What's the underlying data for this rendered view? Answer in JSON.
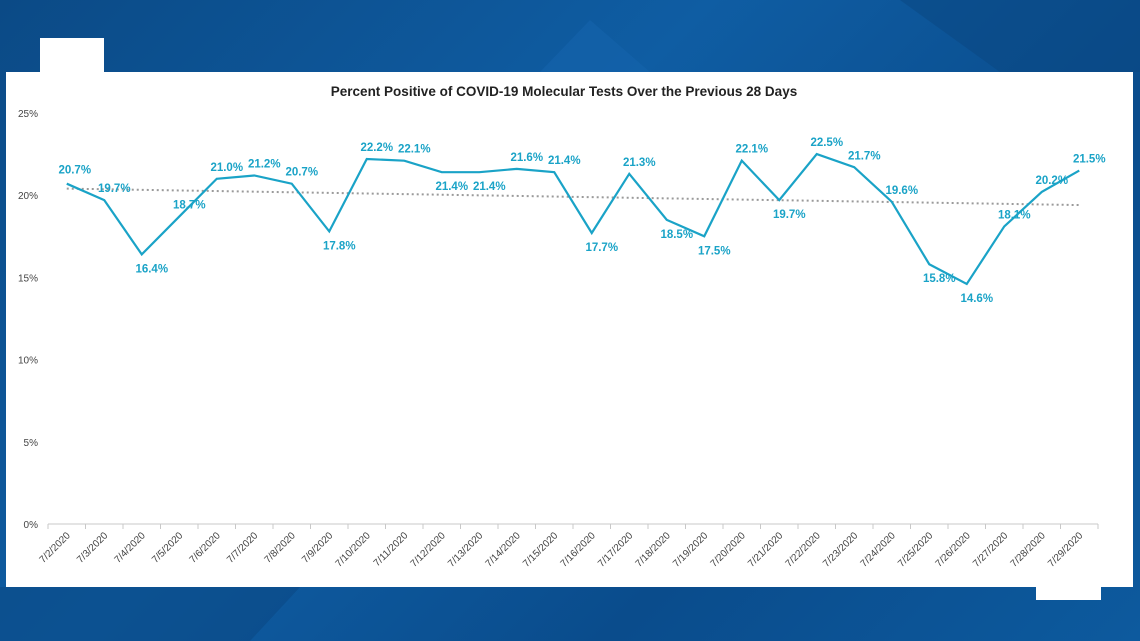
{
  "colors": {
    "series": "#1aa3c7",
    "trend": "#9a9a9a",
    "axis": "#c8c8c8",
    "background": "#0d5a9e",
    "panel": "#ffffff"
  },
  "chart_data": {
    "type": "line",
    "title": "Percent Positive of COVID-19 Molecular Tests Over the Previous 28 Days",
    "xlabel": "",
    "ylabel": "",
    "ylim": [
      0,
      25
    ],
    "yticks": [
      "0%",
      "5%",
      "10%",
      "15%",
      "20%",
      "25%"
    ],
    "ytick_values": [
      0,
      5,
      10,
      15,
      20,
      25
    ],
    "grid": false,
    "legend": "none",
    "trendline": {
      "style": "dotted linear",
      "start": 20.4,
      "end": 19.4
    },
    "categories": [
      "7/2/2020",
      "7/3/2020",
      "7/4/2020",
      "7/5/2020",
      "7/6/2020",
      "7/7/2020",
      "7/8/2020",
      "7/9/2020",
      "7/10/2020",
      "7/11/2020",
      "7/12/2020",
      "7/13/2020",
      "7/14/2020",
      "7/15/2020",
      "7/16/2020",
      "7/17/2020",
      "7/18/2020",
      "7/19/2020",
      "7/20/2020",
      "7/21/2020",
      "7/22/2020",
      "7/23/2020",
      "7/24/2020",
      "7/25/2020",
      "7/26/2020",
      "7/27/2020",
      "7/28/2020",
      "7/29/2020"
    ],
    "values": [
      20.7,
      19.7,
      16.4,
      18.7,
      21.0,
      21.2,
      20.7,
      17.8,
      22.2,
      22.1,
      21.4,
      21.4,
      21.6,
      21.4,
      17.7,
      21.3,
      18.5,
      17.5,
      22.1,
      19.7,
      22.5,
      21.7,
      19.6,
      15.8,
      14.6,
      18.1,
      20.2,
      21.5
    ],
    "data_labels": [
      "20.7%",
      "19.7%",
      "16.4%",
      "18.7%",
      "21.0%",
      "21.2%",
      "20.7%",
      "17.8%",
      "22.2%",
      "22.1%",
      "21.4%",
      "21.4%",
      "21.6%",
      "21.4%",
      "17.7%",
      "21.3%",
      "18.5%",
      "17.5%",
      "22.1%",
      "19.7%",
      "22.5%",
      "21.7%",
      "19.6%",
      "15.8%",
      "14.6%",
      "18.1%",
      "20.2%",
      "21.5%"
    ]
  }
}
